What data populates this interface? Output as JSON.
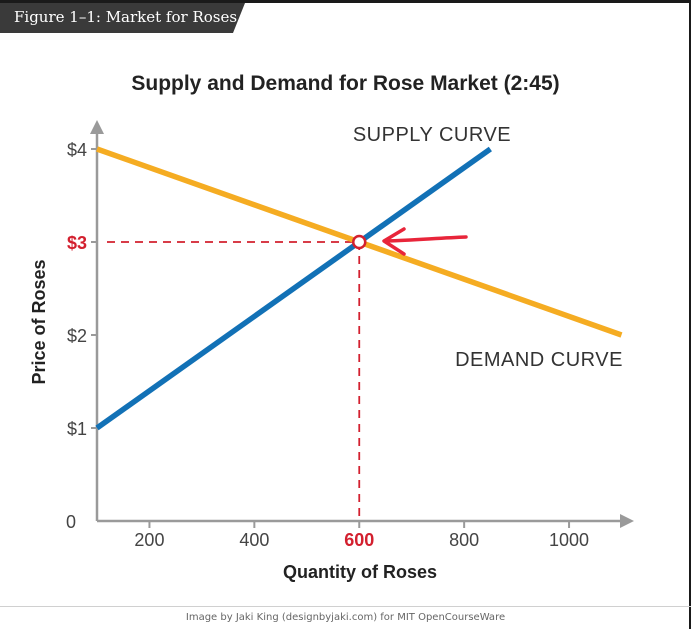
{
  "figure_label": "Figure 1–1: Market for Roses",
  "credit": "Image by Jaki King (designbyjaki.com) for MIT OpenCourseWare",
  "chart_data": {
    "type": "line",
    "title": "Supply and Demand for Rose Market (2:45)",
    "xlabel": "Quantity of Roses",
    "ylabel": "Price of Roses",
    "xlim": [
      100,
      1100
    ],
    "ylim": [
      0,
      4
    ],
    "x_ticks": [
      {
        "value": 200,
        "label": "200"
      },
      {
        "value": 400,
        "label": "400"
      },
      {
        "value": 600,
        "label": "600"
      },
      {
        "value": 800,
        "label": "800"
      },
      {
        "value": 1000,
        "label": "1000"
      }
    ],
    "y_ticks": [
      {
        "value": 0,
        "label": "0"
      },
      {
        "value": 1,
        "label": "$1"
      },
      {
        "value": 2,
        "label": "$2"
      },
      {
        "value": 3,
        "label": "$3"
      },
      {
        "value": 4,
        "label": "$4"
      }
    ],
    "series": [
      {
        "name": "SUPPLY CURVE",
        "color": "#1271b6",
        "points": [
          [
            100,
            1.0
          ],
          [
            850,
            4.0
          ]
        ]
      },
      {
        "name": "DEMAND CURVE",
        "color": "#f5ac22",
        "points": [
          [
            100,
            4.0
          ],
          [
            1100,
            2.0
          ]
        ]
      }
    ],
    "equilibrium": {
      "x": 600,
      "y": 3,
      "x_label": "600",
      "y_label": "$3",
      "color": "#d3202f"
    },
    "arrow_color": "#e8253a",
    "axis_color": "#9a9a9a",
    "grid": false
  }
}
